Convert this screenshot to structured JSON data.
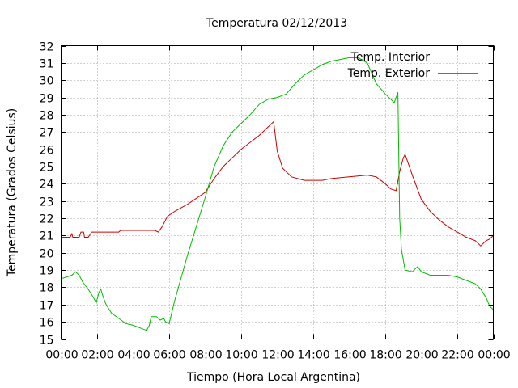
{
  "chart_data": {
    "type": "line",
    "title": "Temperatura 02/12/2013",
    "xlabel": "Tiempo (Hora Local Argentina)",
    "ylabel": "Temperatura (Grados Celsius)",
    "xlim": [
      0,
      24
    ],
    "ylim": [
      15,
      32
    ],
    "x_ticks": [
      0,
      2,
      4,
      6,
      8,
      10,
      12,
      14,
      16,
      18,
      20,
      22,
      24
    ],
    "x_tick_labels": [
      "00:00",
      "02:00",
      "04:00",
      "06:00",
      "08:00",
      "10:00",
      "12:00",
      "14:00",
      "16:00",
      "18:00",
      "20:00",
      "22:00",
      "00:00"
    ],
    "y_ticks": [
      15,
      16,
      17,
      18,
      19,
      20,
      21,
      22,
      23,
      24,
      25,
      26,
      27,
      28,
      29,
      30,
      31,
      32
    ],
    "grid": true,
    "legend_position": "top-right",
    "series": [
      {
        "name": "Temp. Interior",
        "color": "#cc0000",
        "points": [
          [
            0,
            20.9
          ],
          [
            0.5,
            20.9
          ],
          [
            0.6,
            21.1
          ],
          [
            0.65,
            20.9
          ],
          [
            1.0,
            20.9
          ],
          [
            1.1,
            21.2
          ],
          [
            1.25,
            21.2
          ],
          [
            1.3,
            20.9
          ],
          [
            1.5,
            20.9
          ],
          [
            1.7,
            21.2
          ],
          [
            3.2,
            21.2
          ],
          [
            3.3,
            21.3
          ],
          [
            5.2,
            21.3
          ],
          [
            5.4,
            21.2
          ],
          [
            5.6,
            21.5
          ],
          [
            5.9,
            22.1
          ],
          [
            6.3,
            22.4
          ],
          [
            7.0,
            22.8
          ],
          [
            8.0,
            23.5
          ],
          [
            8.5,
            24.3
          ],
          [
            9.0,
            25.0
          ],
          [
            9.5,
            25.5
          ],
          [
            10.0,
            26.0
          ],
          [
            10.5,
            26.4
          ],
          [
            11.0,
            26.8
          ],
          [
            11.5,
            27.3
          ],
          [
            11.8,
            27.6
          ],
          [
            12.0,
            25.9
          ],
          [
            12.3,
            24.9
          ],
          [
            12.8,
            24.4
          ],
          [
            13.5,
            24.2
          ],
          [
            14.5,
            24.2
          ],
          [
            15.0,
            24.3
          ],
          [
            16.0,
            24.4
          ],
          [
            17.0,
            24.5
          ],
          [
            17.5,
            24.4
          ],
          [
            18.0,
            24.0
          ],
          [
            18.3,
            23.7
          ],
          [
            18.6,
            23.6
          ],
          [
            18.8,
            24.7
          ],
          [
            19.0,
            25.5
          ],
          [
            19.1,
            25.7
          ],
          [
            19.5,
            24.5
          ],
          [
            20.0,
            23.1
          ],
          [
            20.5,
            22.4
          ],
          [
            21.0,
            21.9
          ],
          [
            21.5,
            21.5
          ],
          [
            22.0,
            21.2
          ],
          [
            22.5,
            20.9
          ],
          [
            23.0,
            20.7
          ],
          [
            23.3,
            20.4
          ],
          [
            23.6,
            20.7
          ],
          [
            23.8,
            20.8
          ],
          [
            24.0,
            21.0
          ]
        ]
      },
      {
        "name": "Temp. Exterior",
        "color": "#00bb00",
        "points": [
          [
            0,
            18.5
          ],
          [
            0.3,
            18.6
          ],
          [
            0.6,
            18.7
          ],
          [
            0.8,
            18.9
          ],
          [
            1.0,
            18.7
          ],
          [
            1.2,
            18.3
          ],
          [
            1.5,
            17.9
          ],
          [
            1.8,
            17.4
          ],
          [
            1.95,
            17.1
          ],
          [
            2.1,
            17.7
          ],
          [
            2.2,
            17.9
          ],
          [
            2.35,
            17.4
          ],
          [
            2.5,
            17.0
          ],
          [
            2.8,
            16.5
          ],
          [
            3.2,
            16.2
          ],
          [
            3.6,
            15.9
          ],
          [
            4.0,
            15.8
          ],
          [
            4.5,
            15.6
          ],
          [
            4.75,
            15.5
          ],
          [
            4.9,
            15.8
          ],
          [
            5.0,
            16.3
          ],
          [
            5.3,
            16.3
          ],
          [
            5.5,
            16.1
          ],
          [
            5.7,
            16.2
          ],
          [
            5.8,
            16.0
          ],
          [
            6.0,
            15.9
          ],
          [
            6.3,
            17.2
          ],
          [
            7.0,
            19.8
          ],
          [
            7.5,
            21.5
          ],
          [
            8.0,
            23.2
          ],
          [
            8.5,
            25.0
          ],
          [
            9.0,
            26.2
          ],
          [
            9.5,
            27.0
          ],
          [
            10.0,
            27.5
          ],
          [
            10.5,
            28.0
          ],
          [
            11.0,
            28.6
          ],
          [
            11.5,
            28.9
          ],
          [
            12.0,
            29.0
          ],
          [
            12.5,
            29.2
          ],
          [
            13.0,
            29.8
          ],
          [
            13.5,
            30.3
          ],
          [
            14.0,
            30.6
          ],
          [
            14.5,
            30.9
          ],
          [
            15.0,
            31.1
          ],
          [
            15.5,
            31.2
          ],
          [
            16.0,
            31.3
          ],
          [
            16.5,
            31.3
          ],
          [
            17.0,
            31.0
          ],
          [
            17.5,
            29.8
          ],
          [
            18.0,
            29.2
          ],
          [
            18.5,
            28.7
          ],
          [
            18.7,
            29.3
          ],
          [
            18.8,
            22.0
          ],
          [
            18.9,
            20.2
          ],
          [
            19.1,
            19.0
          ],
          [
            19.5,
            18.9
          ],
          [
            19.8,
            19.2
          ],
          [
            20.0,
            18.9
          ],
          [
            20.5,
            18.7
          ],
          [
            21.0,
            18.7
          ],
          [
            21.5,
            18.7
          ],
          [
            22.0,
            18.6
          ],
          [
            22.5,
            18.4
          ],
          [
            23.0,
            18.2
          ],
          [
            23.3,
            17.9
          ],
          [
            23.6,
            17.4
          ],
          [
            23.8,
            16.9
          ],
          [
            24.0,
            16.7
          ]
        ]
      }
    ]
  }
}
